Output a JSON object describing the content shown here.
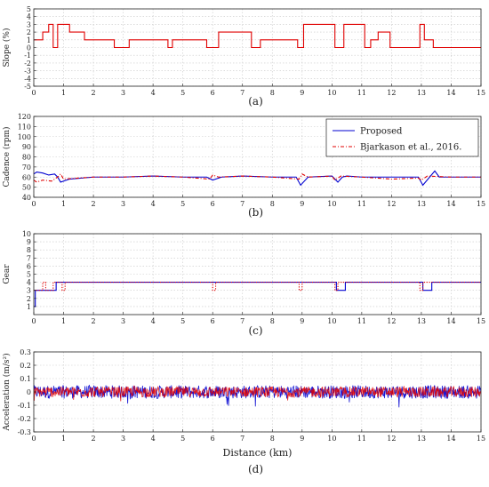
{
  "chart_data": [
    {
      "type": "line",
      "panel_label": "(a)",
      "ylabel": "Slope (%)",
      "xlim": [
        0,
        15
      ],
      "ylim": [
        -5,
        5
      ],
      "xticks": [
        0,
        1,
        2,
        3,
        4,
        5,
        6,
        7,
        8,
        9,
        10,
        11,
        12,
        13,
        14,
        15
      ],
      "yticks": [
        -5,
        -4,
        -3,
        -2,
        -1,
        0,
        1,
        2,
        3,
        4,
        5
      ],
      "grid": true,
      "series": [
        {
          "color": "#e00000",
          "style": "step",
          "x": [
            0,
            0.3,
            0.3,
            0.5,
            0.5,
            0.65,
            0.65,
            0.8,
            0.8,
            1.2,
            1.2,
            1.7,
            1.7,
            2.7,
            2.7,
            3.2,
            3.2,
            4.5,
            4.5,
            4.65,
            4.65,
            5.8,
            5.8,
            6.2,
            6.2,
            7.3,
            7.3,
            7.6,
            7.6,
            8.85,
            8.85,
            9.05,
            9.05,
            10.1,
            10.1,
            10.4,
            10.4,
            11.1,
            11.1,
            11.3,
            11.3,
            11.55,
            11.55,
            11.95,
            11.95,
            12.95,
            12.95,
            13.1,
            13.1,
            13.4,
            13.4,
            15
          ],
          "y": [
            1,
            1,
            2,
            2,
            3,
            3,
            0,
            0,
            3,
            3,
            2,
            2,
            1,
            1,
            0,
            0,
            1,
            1,
            0,
            0,
            1,
            1,
            0,
            0,
            2,
            2,
            0,
            0,
            1,
            1,
            0,
            0,
            3,
            3,
            0,
            0,
            3,
            3,
            0,
            0,
            1,
            1,
            2,
            2,
            0,
            0,
            3,
            3,
            1,
            1,
            0,
            0
          ]
        }
      ]
    },
    {
      "type": "line",
      "panel_label": "(b)",
      "ylabel": "Cadence (rpm)",
      "xlim": [
        0,
        15
      ],
      "ylim": [
        40,
        120
      ],
      "xticks": [
        0,
        1,
        2,
        3,
        4,
        5,
        6,
        7,
        8,
        9,
        10,
        11,
        12,
        13,
        14,
        15
      ],
      "yticks": [
        40,
        50,
        60,
        70,
        80,
        90,
        100,
        110,
        120
      ],
      "grid": true,
      "legend_position": "top-right",
      "series": [
        {
          "name": "Proposed",
          "color": "#0000d0",
          "style": "solid",
          "x": [
            0,
            0.1,
            0.3,
            0.5,
            0.7,
            0.8,
            0.9,
            1.2,
            2,
            3,
            4,
            5,
            5.8,
            6.0,
            6.3,
            7,
            8,
            8.8,
            8.95,
            9.2,
            10,
            10.2,
            10.35,
            10.5,
            11,
            12,
            12.9,
            13.05,
            13.45,
            13.6,
            14,
            15
          ],
          "y": [
            63,
            65,
            64,
            62,
            63,
            60,
            55,
            58,
            60,
            60,
            61,
            60,
            60,
            57,
            60,
            61,
            60,
            60,
            52,
            60,
            61,
            55,
            60,
            61,
            60,
            60,
            60,
            52,
            66,
            60,
            60,
            60
          ]
        },
        {
          "name": "Bjarkason et al., 2016.",
          "color": "#e00000",
          "style": "dashdot",
          "x": [
            0,
            0.1,
            0.3,
            0.6,
            0.7,
            0.8,
            0.9,
            1.0,
            2,
            3,
            4,
            5,
            5.9,
            6.0,
            6.2,
            7,
            8,
            8.9,
            9.0,
            9.2,
            10,
            10.1,
            10.3,
            11,
            12,
            12.9,
            13.0,
            13.2,
            14,
            15
          ],
          "y": [
            57,
            55,
            57,
            56,
            58,
            60,
            63,
            58,
            60,
            60,
            61,
            60,
            58,
            62,
            60,
            61,
            60,
            58,
            63,
            60,
            61,
            57,
            61,
            60,
            58,
            59,
            57,
            61,
            60,
            60
          ]
        }
      ]
    },
    {
      "type": "line",
      "panel_label": "(c)",
      "ylabel": "Gear",
      "xlim": [
        0,
        15
      ],
      "ylim": [
        0,
        10
      ],
      "xticks": [
        0,
        1,
        2,
        3,
        4,
        5,
        6,
        7,
        8,
        9,
        10,
        11,
        12,
        13,
        14,
        15
      ],
      "yticks": [
        1,
        2,
        3,
        4,
        5,
        6,
        7,
        8,
        9,
        10
      ],
      "grid": true,
      "series": [
        {
          "name": "Proposed",
          "color": "#0000d0",
          "style": "step",
          "x": [
            0,
            0.05,
            0.05,
            0.75,
            0.75,
            10.15,
            10.15,
            10.45,
            10.45,
            13.05,
            13.05,
            13.35,
            13.35,
            15
          ],
          "y": [
            1,
            1,
            3,
            3,
            4,
            4,
            3,
            3,
            4,
            4,
            3,
            3,
            4,
            4
          ]
        },
        {
          "name": "Bjarkason et al., 2016.",
          "color": "#e00000",
          "style": "dotted",
          "x": [
            0,
            0.3,
            0.3,
            0.4,
            0.4,
            0.65,
            0.65,
            0.95,
            0.95,
            1.05,
            1.05,
            6.0,
            6.0,
            6.1,
            6.1,
            8.9,
            8.9,
            9.0,
            9.0,
            10.1,
            10.1,
            10.2,
            10.2,
            12.95,
            12.95,
            13.05,
            13.05,
            15
          ],
          "y": [
            3,
            3,
            4,
            4,
            3,
            3,
            4,
            4,
            3,
            3,
            4,
            4,
            3,
            3,
            4,
            4,
            3,
            3,
            4,
            4,
            3,
            3,
            4,
            4,
            3,
            3,
            4,
            4
          ]
        }
      ]
    },
    {
      "type": "line",
      "panel_label": "(d)",
      "ylabel": "Acceleration (m/s²)",
      "xlabel": "Distance (km)",
      "xlim": [
        0,
        15
      ],
      "ylim": [
        -0.3,
        0.3
      ],
      "xticks": [
        0,
        1,
        2,
        3,
        4,
        5,
        6,
        7,
        8,
        9,
        10,
        11,
        12,
        13,
        14,
        15
      ],
      "yticks": [
        -0.3,
        -0.2,
        -0.1,
        0,
        0.1,
        0.2,
        0.3
      ],
      "grid": true,
      "series": [
        {
          "name": "Proposed",
          "color": "#0000d0",
          "style": "noise",
          "center": 0,
          "amplitude": 0.05,
          "peak_amplitude": 0.12
        },
        {
          "name": "Bjarkason et al., 2016.",
          "color": "#e00000",
          "style": "noise",
          "center": 0,
          "amplitude": 0.04,
          "peak_amplitude": 0.08
        }
      ]
    }
  ]
}
